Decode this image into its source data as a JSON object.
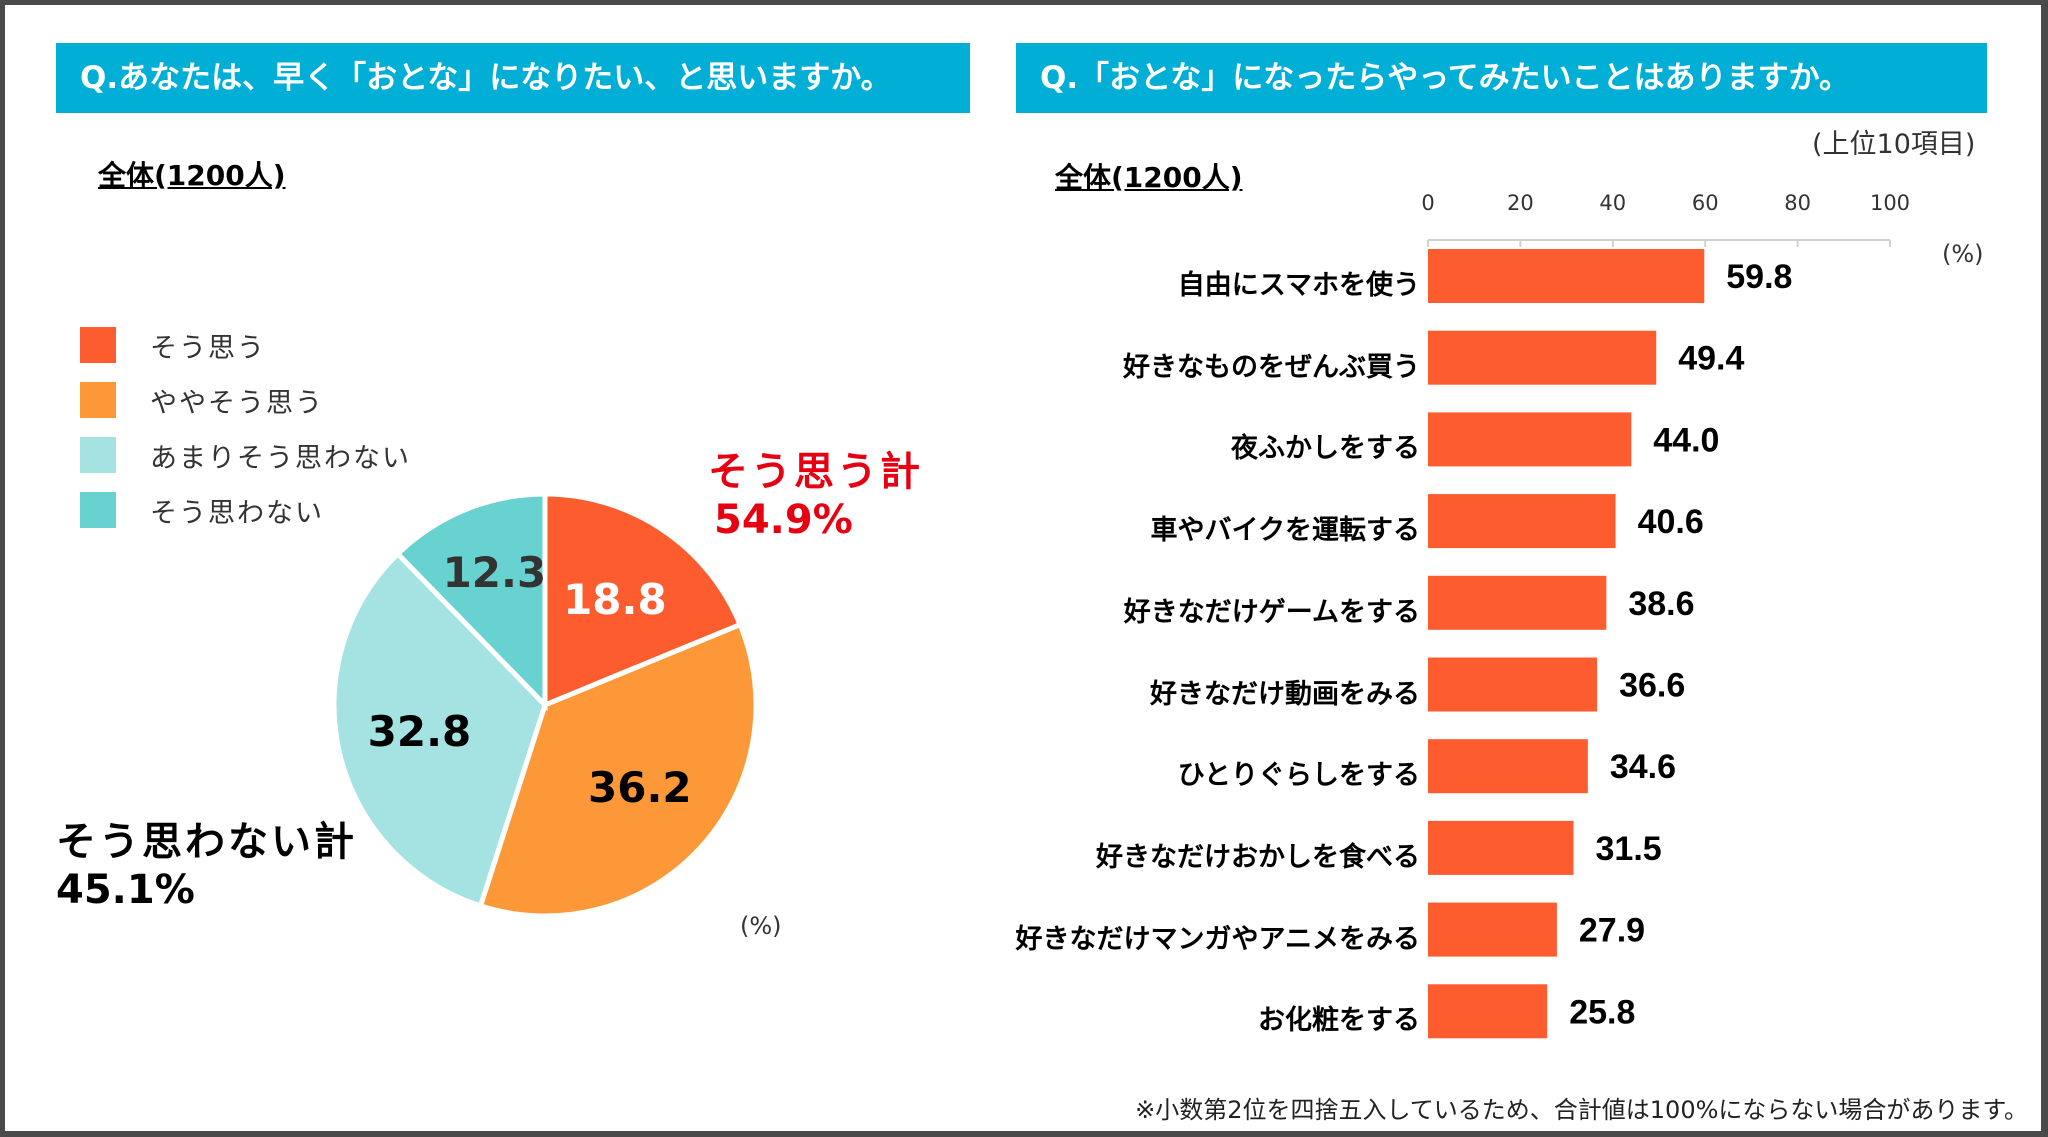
{
  "left_panel": {
    "question": "Q.あなたは、早く「おとな」になりたい、と思いますか。",
    "subtitle": "全体(1200人)",
    "unit": "(%)",
    "total_yes": {
      "label": "そう思う計",
      "value": "54.9%"
    },
    "total_no": {
      "label": "そう思わない計",
      "value": "45.1%"
    }
  },
  "right_panel": {
    "question": "Q.「おとな」になったらやってみたいことはありますか。",
    "subtitle": "全体(1200人)",
    "scope": "(上位10項目)",
    "unit": "(%)"
  },
  "footnote": "※小数第2位を四捨五入しているため、合計値は100%にならない場合があります。",
  "chart_data": [
    {
      "type": "pie",
      "title": "Q.あなたは、早く「おとな」になりたい、と思いますか。",
      "categories": [
        "そう思う",
        "ややそう思う",
        "あまりそう思わない",
        "そう思わない"
      ],
      "values": [
        18.8,
        36.2,
        32.8,
        12.3
      ],
      "labels": [
        "18.8",
        "36.2",
        "32.8",
        "12.3"
      ],
      "colors": [
        "#fc5c2e",
        "#fd9838",
        "#a5e3e3",
        "#68d2d0"
      ],
      "label_colors": [
        "#ffffff",
        "#000000",
        "#000000",
        "#333333"
      ],
      "legend_position": "left",
      "unit": "%"
    },
    {
      "type": "bar",
      "orientation": "horizontal",
      "title": "Q.「おとな」になったらやってみたいことはありますか。",
      "categories": [
        "自由にスマホを使う",
        "好きなものをぜんぶ買う",
        "夜ふかしをする",
        "車やバイクを運転する",
        "好きなだけゲームをする",
        "好きなだけ動画をみる",
        "ひとりぐらしをする",
        "好きなだけおかしを食べる",
        "好きなだけマンガやアニメをみる",
        "お化粧をする"
      ],
      "values": [
        59.8,
        49.4,
        44.0,
        40.6,
        38.6,
        36.6,
        34.6,
        31.5,
        27.9,
        25.8
      ],
      "value_labels": [
        "59.8",
        "49.4",
        "44.0",
        "40.6",
        "38.6",
        "36.6",
        "34.6",
        "31.5",
        "27.9",
        "25.8"
      ],
      "xlim": [
        0,
        100
      ],
      "ticks": [
        "0",
        "20",
        "40",
        "60",
        "80",
        "100"
      ],
      "tick_values": [
        0,
        20,
        40,
        60,
        80,
        100
      ],
      "xlabel": "(%)",
      "color": "#fc5c2e",
      "grid": false
    }
  ]
}
